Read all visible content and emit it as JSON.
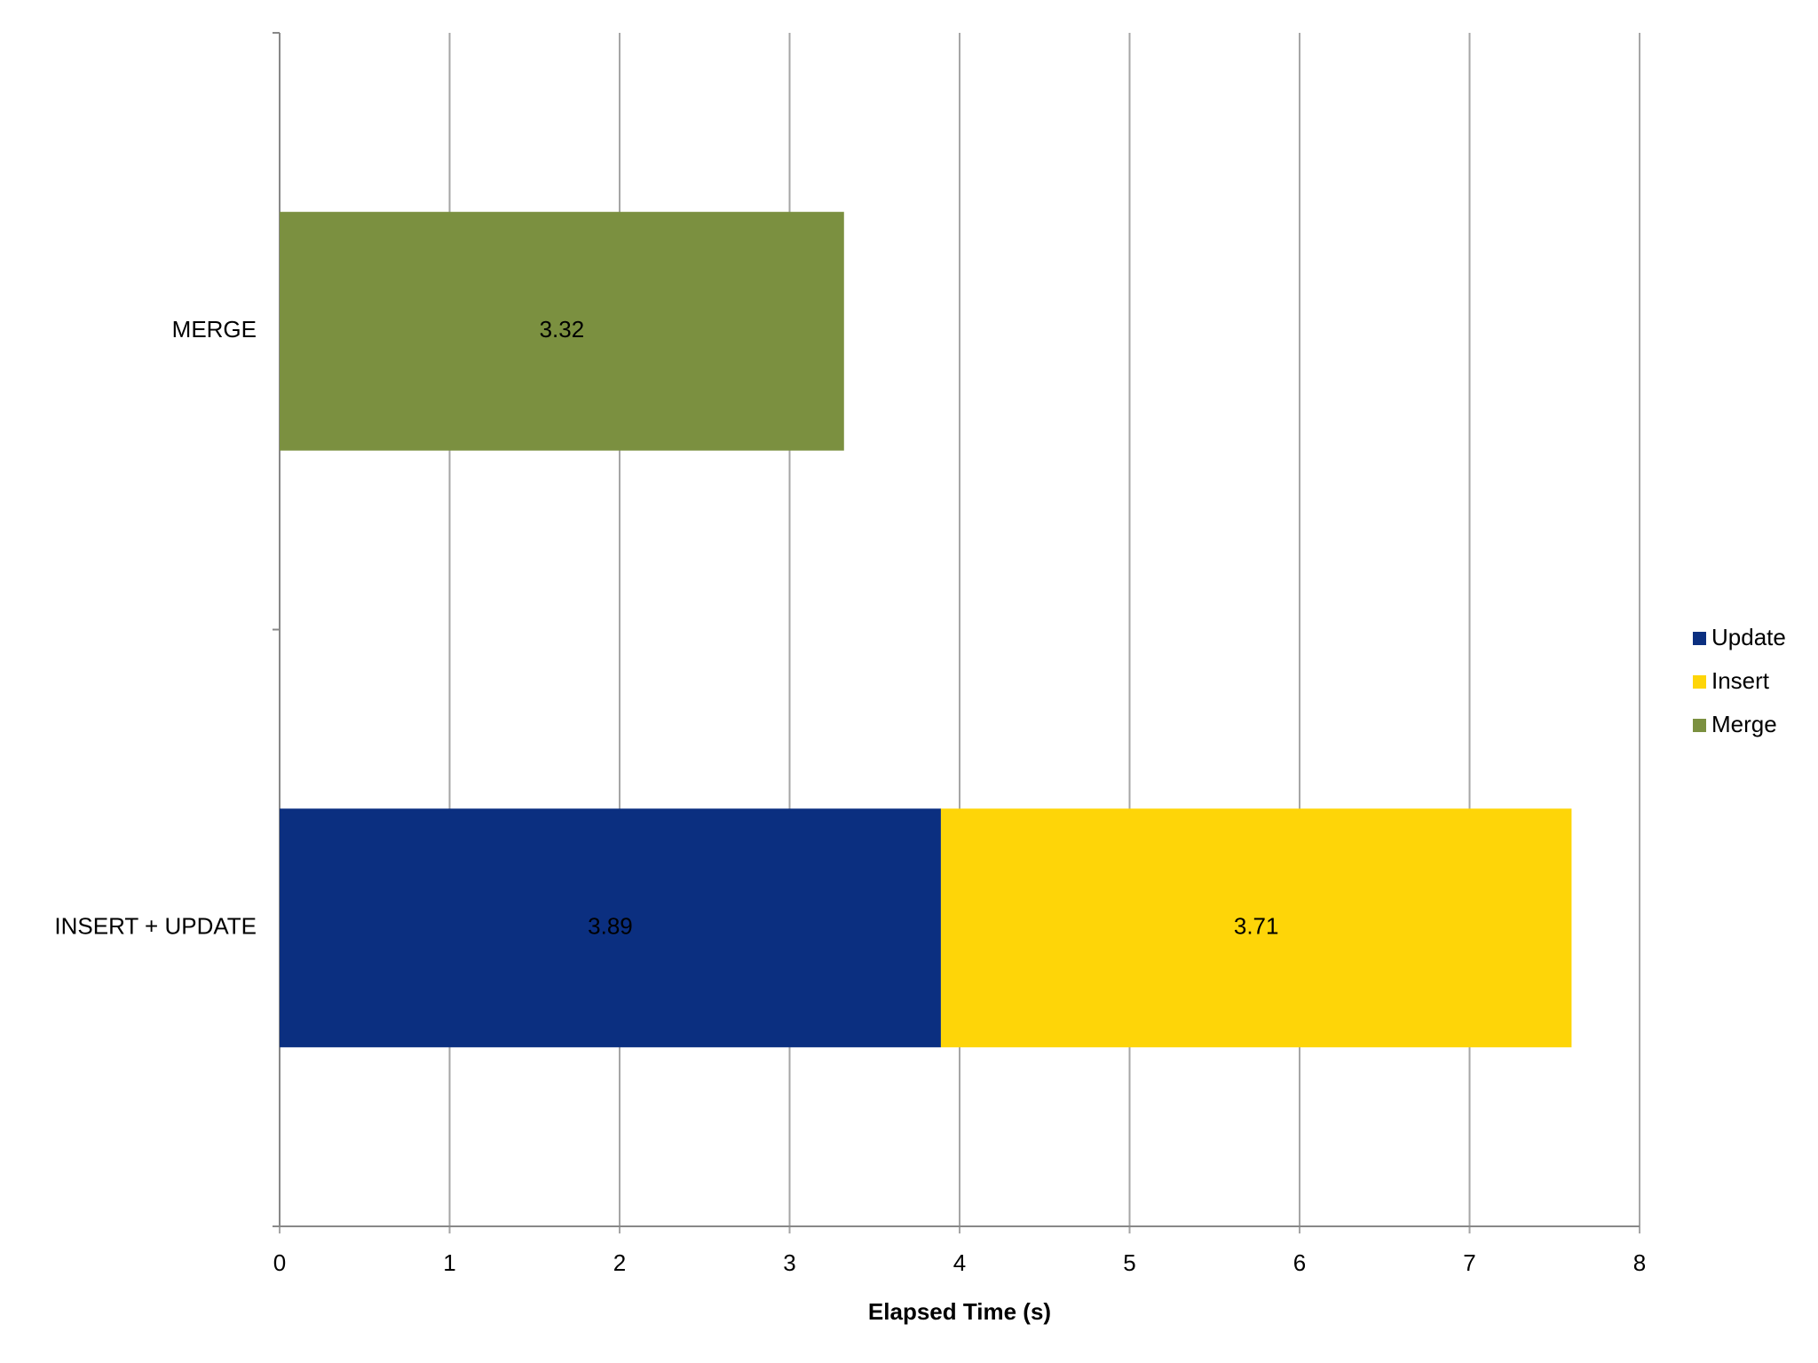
{
  "chart_data": {
    "type": "stacked-barh",
    "categories": [
      "MERGE",
      "INSERT + UPDATE"
    ],
    "series": [
      {
        "name": "Update",
        "color": "#0b2f80",
        "values": [
          null,
          3.89
        ]
      },
      {
        "name": "Insert",
        "color": "#fed508",
        "values": [
          null,
          3.71
        ]
      },
      {
        "name": "Merge",
        "color": "#7b9040",
        "values": [
          3.32,
          null
        ]
      }
    ],
    "xlabel": "Elapsed Time (s)",
    "xlim": [
      0,
      8
    ],
    "xticks": [
      0,
      1,
      2,
      3,
      4,
      5,
      6,
      7,
      8
    ],
    "grid": true,
    "legend": "right"
  }
}
